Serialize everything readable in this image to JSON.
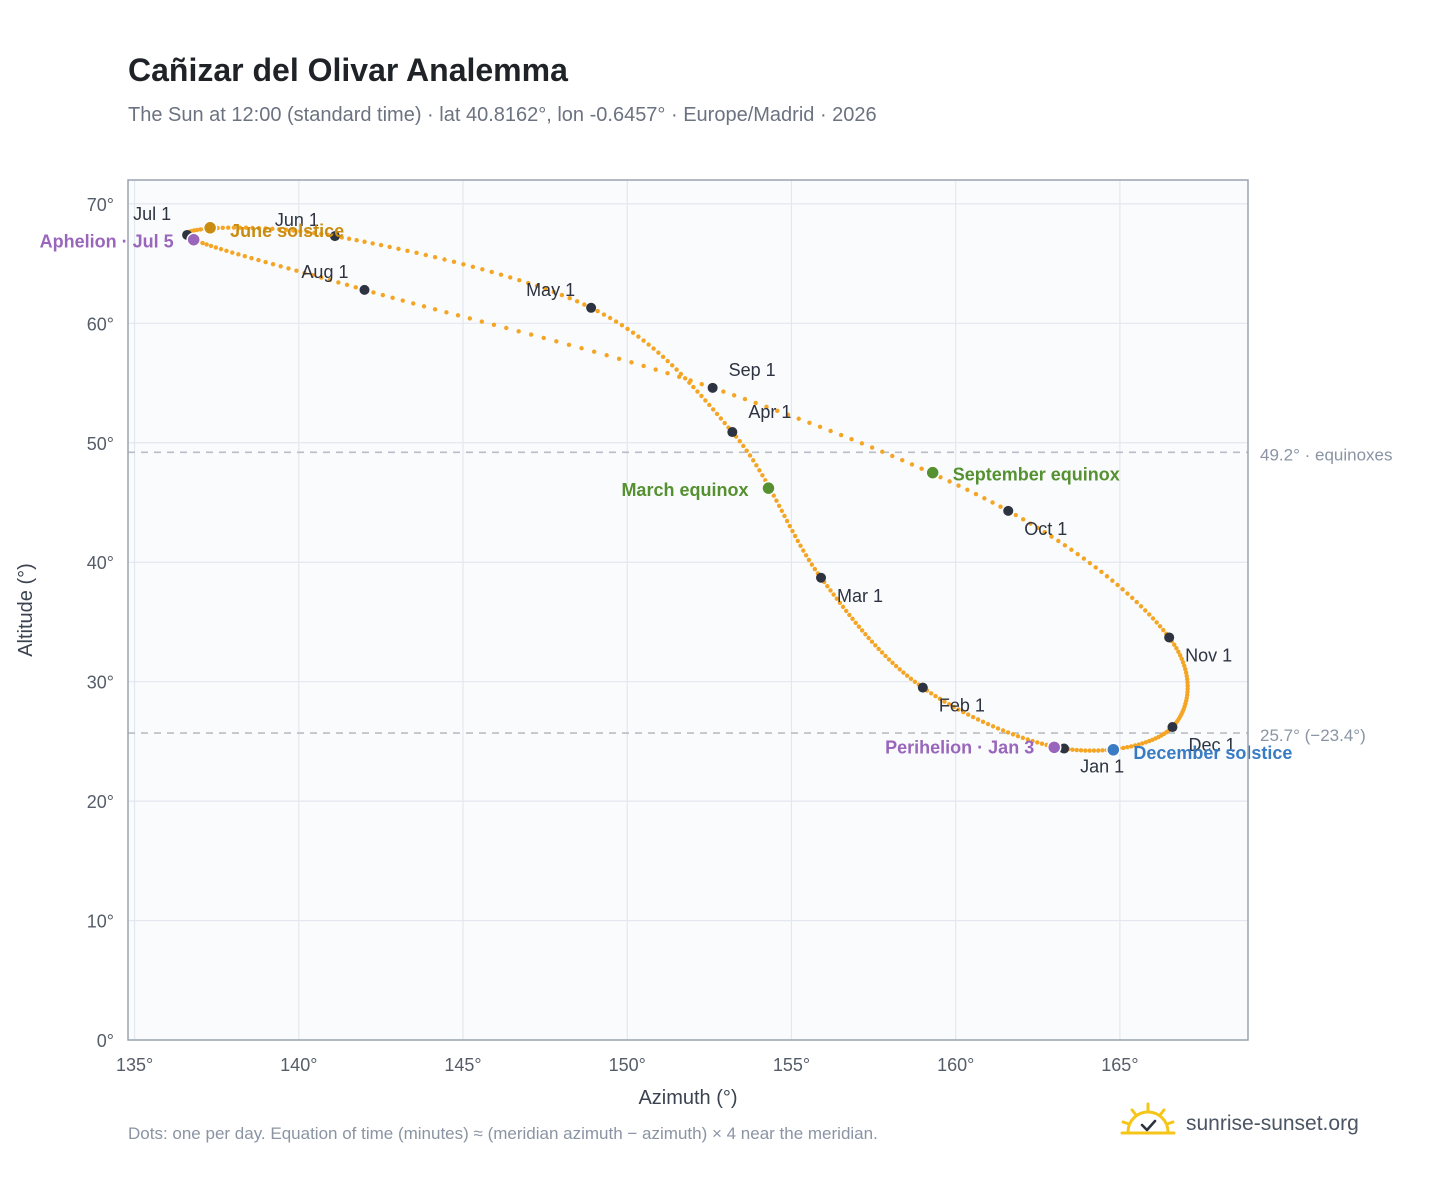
{
  "title": "Cañizar del Olivar Analemma",
  "subtitle": "The Sun at 12:00 (standard time) · lat 40.8162°, lon -0.6457° · Europe/Madrid · 2026",
  "footnote": "Dots: one per day. Equation of time (minutes) ≈ (meridian azimuth − azimuth) × 4 near the meridian.",
  "brand": "sunrise-sunset.org",
  "colors": {
    "curve": "#f5a524",
    "month_dot": "#2d3340",
    "equinox": "#559130",
    "june_solstice": "#c98c10",
    "december_solstice": "#3a7cc4",
    "apsis": "#9966bb",
    "reference_line": "#b8bec7",
    "plot_bg": "#f9fbfd",
    "grid": "#e3e8ee",
    "axis": "#9aa3b0"
  },
  "chart_data": {
    "type": "scatter",
    "xlabel": "Azimuth (°)",
    "ylabel": "Altitude (°)",
    "xlim": [
      134.8,
      168.9
    ],
    "ylim": [
      0,
      72
    ],
    "xticks": [
      135,
      140,
      145,
      150,
      155,
      160,
      165
    ],
    "yticks": [
      0,
      10,
      20,
      30,
      40,
      50,
      60,
      70
    ],
    "xtick_labels": [
      "135°",
      "140°",
      "145°",
      "150°",
      "155°",
      "160°",
      "165°"
    ],
    "ytick_labels": [
      "0°",
      "10°",
      "20°",
      "30°",
      "40°",
      "50°",
      "60°",
      "70°"
    ],
    "grid": true,
    "curve_anchors": [
      {
        "date": "Jan 1",
        "az": 163.3,
        "alt": 24.4
      },
      {
        "date": "Feb 1",
        "az": 159.0,
        "alt": 29.5
      },
      {
        "date": "Mar 1",
        "az": 155.9,
        "alt": 38.7
      },
      {
        "date": "Apr 1",
        "az": 153.2,
        "alt": 50.9
      },
      {
        "date": "May 1",
        "az": 148.9,
        "alt": 61.3
      },
      {
        "date": "Jun 1",
        "az": 141.1,
        "alt": 67.3
      },
      {
        "date": "Jul 1",
        "az": 136.6,
        "alt": 67.4
      },
      {
        "date": "Aug 1",
        "az": 142.0,
        "alt": 62.8
      },
      {
        "date": "Sep 1",
        "az": 152.6,
        "alt": 54.6
      },
      {
        "date": "Oct 1",
        "az": 161.6,
        "alt": 44.3
      },
      {
        "date": "Nov 1",
        "az": 166.5,
        "alt": 33.7
      },
      {
        "date": "Dec 1",
        "az": 166.6,
        "alt": 26.2
      }
    ],
    "month_markers": [
      {
        "label": "Jan 1",
        "az": 163.3,
        "alt": 24.4
      },
      {
        "label": "Feb 1",
        "az": 159.0,
        "alt": 29.5
      },
      {
        "label": "Mar 1",
        "az": 155.9,
        "alt": 38.7
      },
      {
        "label": "Apr 1",
        "az": 153.2,
        "alt": 50.9
      },
      {
        "label": "May 1",
        "az": 148.9,
        "alt": 61.3
      },
      {
        "label": "Jun 1",
        "az": 141.1,
        "alt": 67.3
      },
      {
        "label": "Jul 1",
        "az": 136.6,
        "alt": 67.4
      },
      {
        "label": "Aug 1",
        "az": 142.0,
        "alt": 62.8
      },
      {
        "label": "Sep 1",
        "az": 152.6,
        "alt": 54.6
      },
      {
        "label": "Oct 1",
        "az": 161.6,
        "alt": 44.3
      },
      {
        "label": "Nov 1",
        "az": 166.5,
        "alt": 33.7
      },
      {
        "label": "Dec 1",
        "az": 166.6,
        "alt": 26.2
      }
    ],
    "events": [
      {
        "label": "March equinox",
        "az": 154.3,
        "alt": 46.2,
        "kind": "equinox"
      },
      {
        "label": "September equinox",
        "az": 159.3,
        "alt": 47.5,
        "kind": "equinox"
      },
      {
        "label": "June solstice",
        "az": 137.3,
        "alt": 68.0,
        "kind": "june_solstice"
      },
      {
        "label": "December solstice",
        "az": 164.8,
        "alt": 24.3,
        "kind": "december_solstice"
      },
      {
        "label": "Aphelion · Jul 5",
        "az": 136.8,
        "alt": 67.0,
        "kind": "apsis"
      },
      {
        "label": "Perihelion · Jan 3",
        "az": 163.0,
        "alt": 24.5,
        "kind": "apsis"
      }
    ],
    "reference_lines": [
      {
        "alt": 49.2,
        "label": "49.2° · equinoxes"
      },
      {
        "alt": 25.7,
        "label": "25.7° (−23.4°)"
      }
    ]
  }
}
